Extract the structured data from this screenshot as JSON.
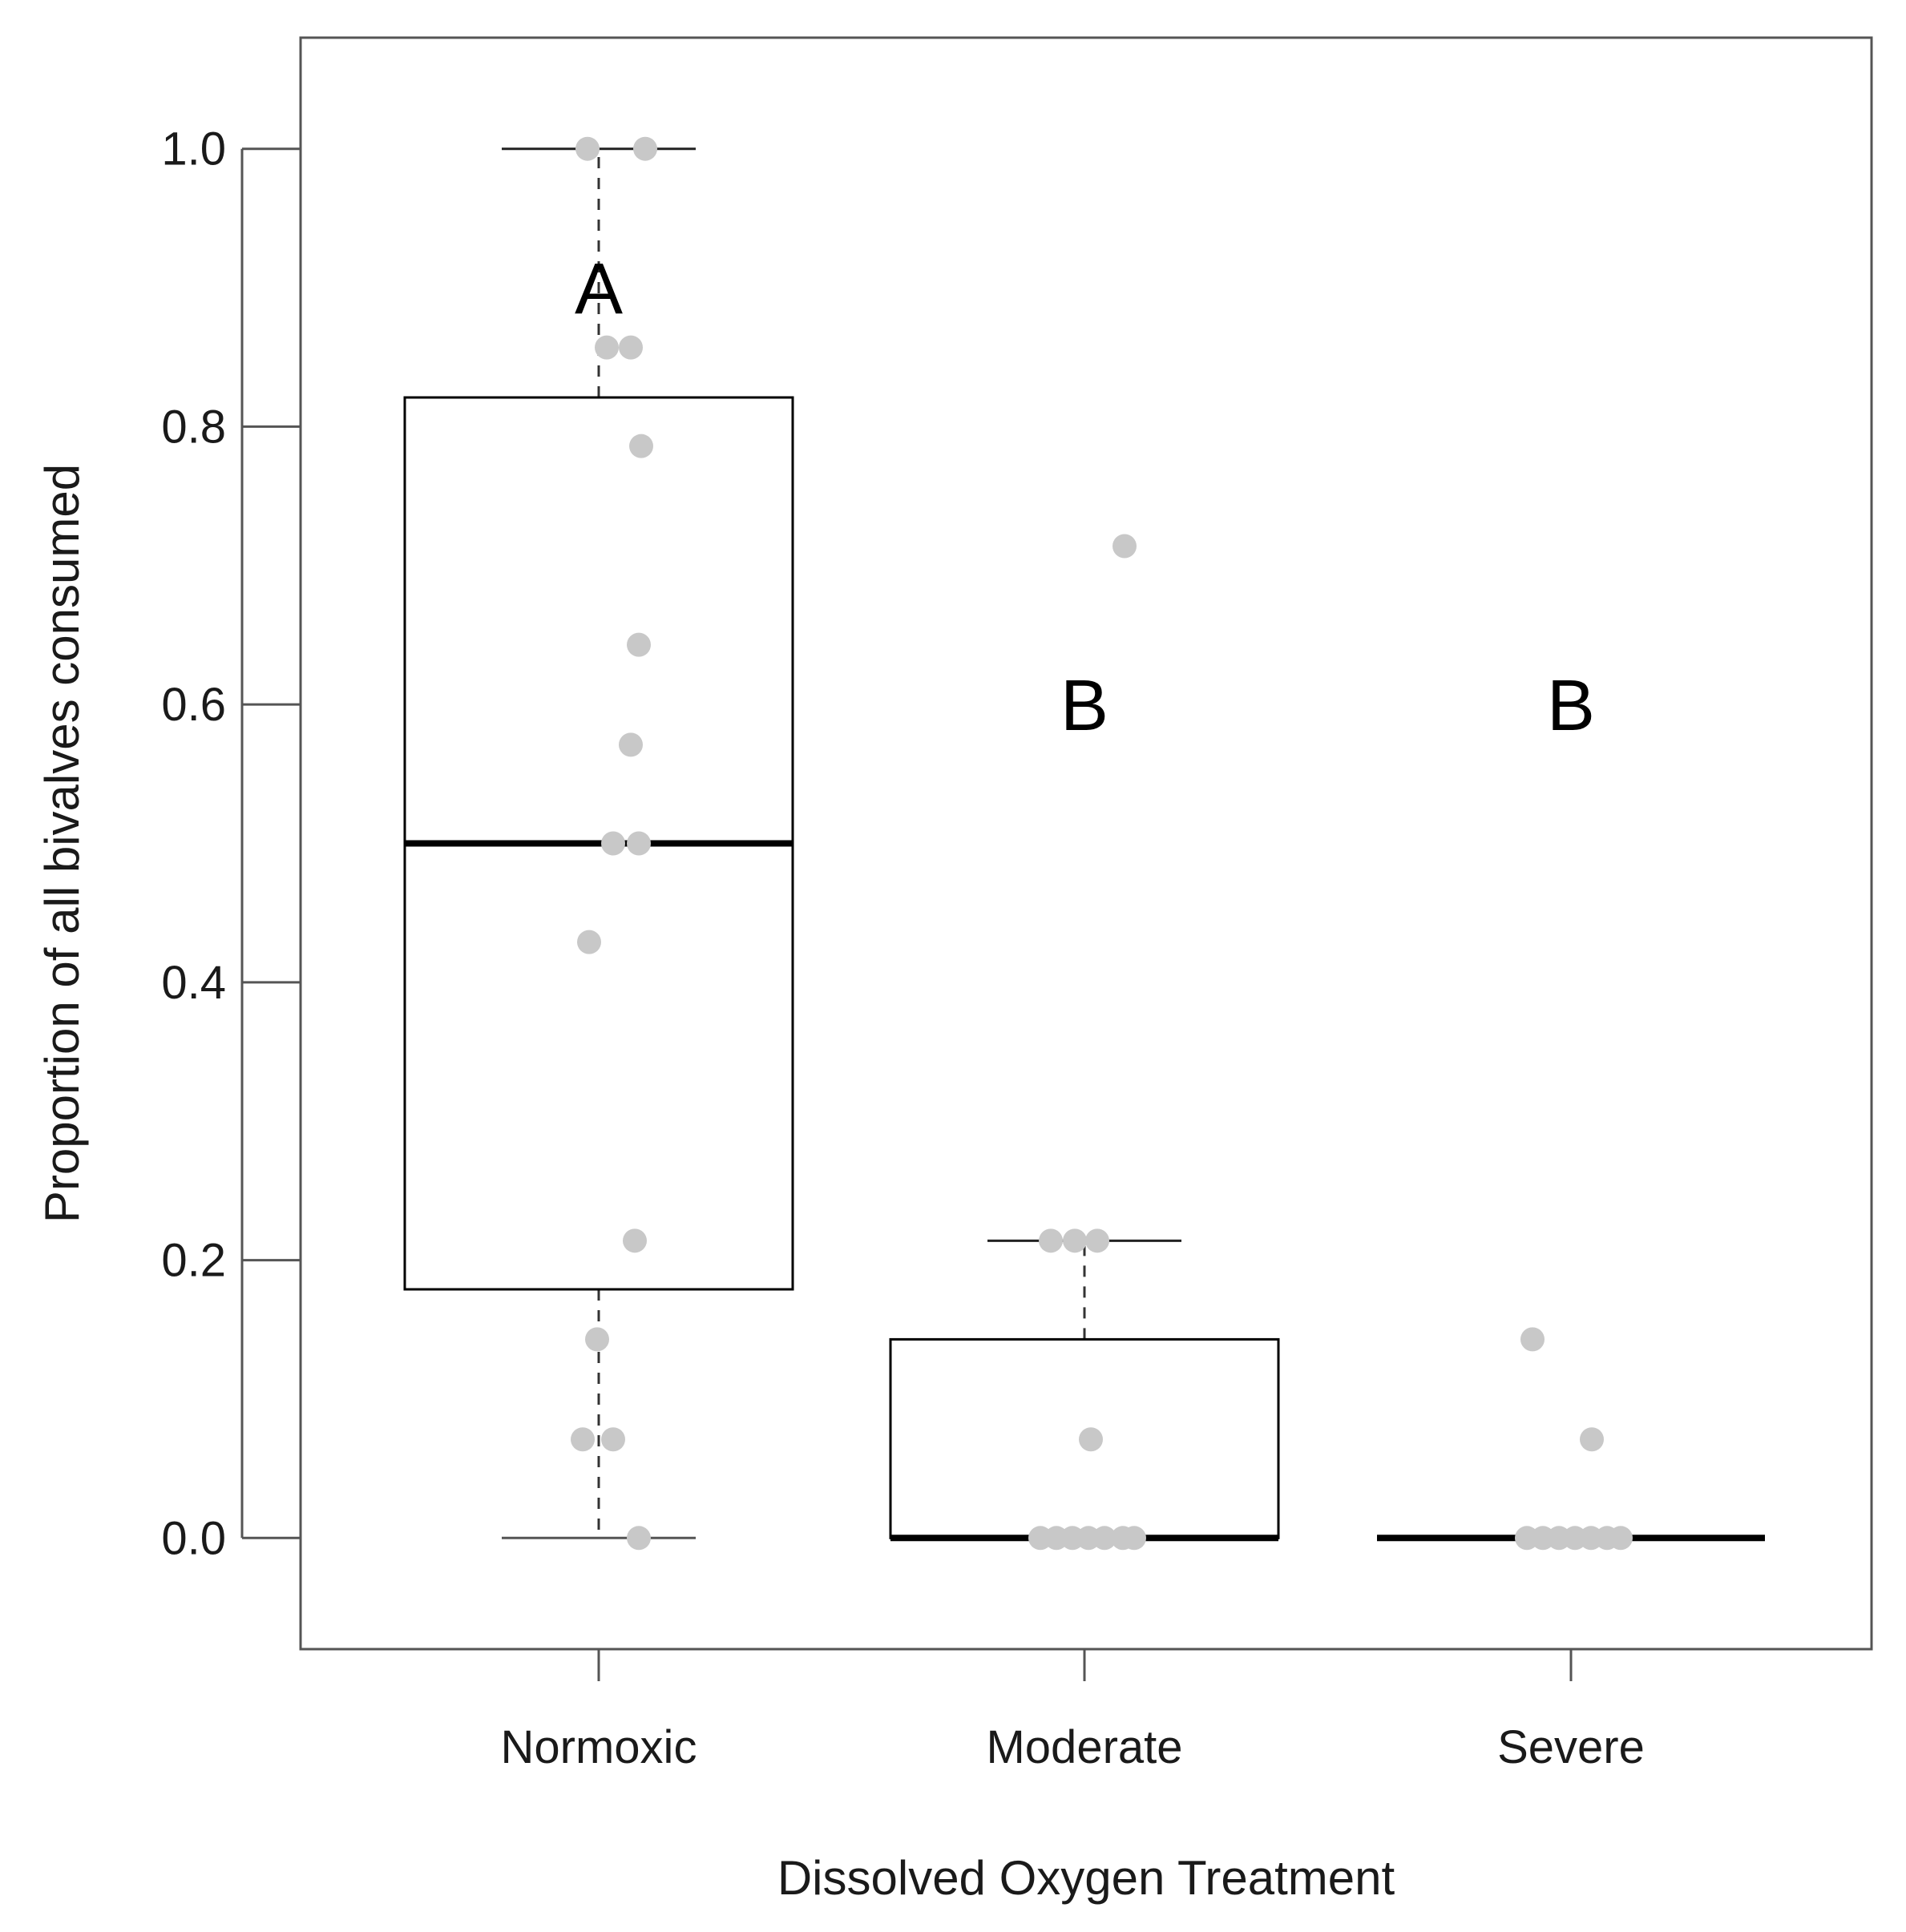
{
  "chart_data": {
    "type": "boxplot",
    "xlabel": "Dissolved Oxygen Treatment",
    "ylabel": "Proportion of all bivalves consumed",
    "ylim": [
      -0.08,
      1.08
    ],
    "yticks": [
      "0.0",
      "0.2",
      "0.4",
      "0.6",
      "0.8",
      "1.0"
    ],
    "ytick_values": [
      0.0,
      0.2,
      0.4,
      0.6,
      0.8,
      1.0
    ],
    "categories": [
      "Normoxic",
      "Moderate",
      "Severe"
    ],
    "boxes": [
      {
        "category": "Normoxic",
        "whisker_low": 0.0,
        "q1": 0.179,
        "median": 0.5,
        "q3": 0.821,
        "whisker_high": 1.0
      },
      {
        "category": "Moderate",
        "whisker_low": 0.0,
        "q1": 0.0,
        "median": 0.0,
        "q3": 0.143,
        "whisker_high": 0.214
      },
      {
        "category": "Severe",
        "whisker_low": 0.0,
        "q1": 0.0,
        "median": 0.0,
        "q3": 0.0,
        "whisker_high": 0.0
      }
    ],
    "points": [
      {
        "category": "Normoxic",
        "values": [
          1.0,
          1.0,
          0.857,
          0.857,
          0.786,
          0.643,
          0.571,
          0.5,
          0.5,
          0.429,
          0.214,
          0.143,
          0.071,
          0.071,
          0.0
        ]
      },
      {
        "category": "Moderate",
        "values": [
          0.714,
          0.214,
          0.214,
          0.214,
          0.071,
          0.0,
          0.0,
          0.0,
          0.0,
          0.0,
          0.0,
          0.0
        ]
      },
      {
        "category": "Severe",
        "values": [
          0.143,
          0.071,
          0.0,
          0.0,
          0.0,
          0.0,
          0.0,
          0.0,
          0.0
        ]
      }
    ],
    "annotations": [
      {
        "category": "Normoxic",
        "text": "A",
        "y": 0.9
      },
      {
        "category": "Moderate",
        "text": "B",
        "y": 0.6
      },
      {
        "category": "Severe",
        "text": "B",
        "y": 0.6
      }
    ],
    "colors": {
      "points": "#c8c8c8",
      "box": "#000000",
      "axis": "#555555"
    },
    "grid": false,
    "legend": "none"
  }
}
